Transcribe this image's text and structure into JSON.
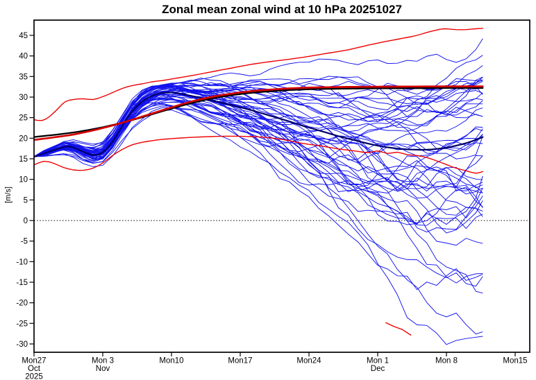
{
  "title": "Zonal mean zonal wind at 10 hPa 20251027",
  "chart_data": {
    "type": "line",
    "title": "Zonal mean zonal wind at 10 hPa 20251027",
    "ylabel": "[m/s]",
    "x_unit": "days since 2025-10-27",
    "xlim_days": [
      0,
      50.5
    ],
    "ylim": [
      -32,
      48.7
    ],
    "grid": false,
    "zero_line": true,
    "y_ticks": [
      -30,
      -25,
      -20,
      -15,
      -10,
      -5,
      0,
      5,
      10,
      15,
      20,
      25,
      30,
      35,
      40,
      45
    ],
    "x_ticks": [
      {
        "day": 0,
        "label": "Mon27",
        "month": "Oct",
        "year": "2025"
      },
      {
        "day": 7,
        "label": "Mon 3",
        "month": "Nov"
      },
      {
        "day": 14,
        "label": "Mon10"
      },
      {
        "day": 21,
        "label": "Mon17"
      },
      {
        "day": 28,
        "label": "Mon24"
      },
      {
        "day": 35,
        "label": "Mon 1",
        "month": "Dec"
      },
      {
        "day": 42,
        "label": "Mon 8"
      },
      {
        "day": 49,
        "label": "Mon15"
      }
    ],
    "series": [
      {
        "name": "climatological-mean-black",
        "color": "#000000",
        "width": 2.3,
        "points": [
          [
            0,
            20.3
          ],
          [
            2,
            20.8
          ],
          [
            4,
            21.4
          ],
          [
            6,
            22.2
          ],
          [
            8,
            23.2
          ],
          [
            10,
            24.4
          ],
          [
            12,
            25.8
          ],
          [
            14,
            27.2
          ],
          [
            16,
            28.5
          ],
          [
            18,
            29.6
          ],
          [
            20,
            30.4
          ],
          [
            22,
            31.0
          ],
          [
            24,
            31.4
          ],
          [
            26,
            31.7
          ],
          [
            28,
            31.9
          ],
          [
            30,
            32.0
          ],
          [
            34,
            32.1
          ],
          [
            38,
            32.15
          ],
          [
            42,
            32.2
          ],
          [
            45.7,
            32.2
          ]
        ]
      },
      {
        "name": "climatological-mean-red",
        "color": "#d40000",
        "width": 2.7,
        "points": [
          [
            0,
            19.6
          ],
          [
            2,
            20.2
          ],
          [
            4,
            20.9
          ],
          [
            6,
            21.9
          ],
          [
            8,
            23.1
          ],
          [
            10,
            24.5
          ],
          [
            12,
            26.0
          ],
          [
            14,
            27.5
          ],
          [
            16,
            28.9
          ],
          [
            18,
            30.0
          ],
          [
            20,
            30.8
          ],
          [
            22,
            31.4
          ],
          [
            24,
            31.8
          ],
          [
            26,
            32.1
          ],
          [
            28,
            32.3
          ],
          [
            30,
            32.4
          ],
          [
            34,
            32.5
          ],
          [
            38,
            32.55
          ],
          [
            42,
            32.6
          ],
          [
            45.7,
            32.6
          ]
        ]
      },
      {
        "name": "climatology-upper-percentile",
        "color": "#ee0000",
        "width": 1.4,
        "points": [
          [
            0,
            24.5
          ],
          [
            0.8,
            24.3
          ],
          [
            1.6,
            25.3
          ],
          [
            2.6,
            27.6
          ],
          [
            3.2,
            28.9
          ],
          [
            4,
            29.4
          ],
          [
            5,
            29.6
          ],
          [
            6,
            29.4
          ],
          [
            7,
            30.1
          ],
          [
            8,
            31.1
          ],
          [
            9,
            32.1
          ],
          [
            10,
            32.8
          ],
          [
            11,
            33.2
          ],
          [
            12,
            33.7
          ],
          [
            13,
            34.0
          ],
          [
            14,
            34.4
          ],
          [
            16,
            35.2
          ],
          [
            18,
            36.1
          ],
          [
            20,
            37.0
          ],
          [
            22,
            37.9
          ],
          [
            24,
            38.6
          ],
          [
            26,
            39.2
          ],
          [
            28,
            39.9
          ],
          [
            30,
            40.7
          ],
          [
            32,
            41.5
          ],
          [
            34,
            42.6
          ],
          [
            36,
            43.6
          ],
          [
            38,
            44.5
          ],
          [
            39,
            45.0
          ],
          [
            40,
            45.7
          ],
          [
            41,
            46.3
          ],
          [
            41.8,
            46.6
          ],
          [
            43,
            46.4
          ],
          [
            44,
            46.4
          ],
          [
            45,
            46.6
          ],
          [
            45.7,
            46.7
          ]
        ]
      },
      {
        "name": "climatology-lower-percentile",
        "color": "#ee0000",
        "width": 1.4,
        "points": [
          [
            0,
            13.5
          ],
          [
            1,
            14.4
          ],
          [
            2,
            13.9
          ],
          [
            3,
            12.9
          ],
          [
            4,
            12.3
          ],
          [
            5,
            12.2
          ],
          [
            6,
            12.7
          ],
          [
            7,
            14.0
          ],
          [
            8,
            15.8
          ],
          [
            9,
            17.3
          ],
          [
            10,
            18.4
          ],
          [
            11,
            19.0
          ],
          [
            12,
            19.4
          ],
          [
            13,
            19.7
          ],
          [
            14,
            19.9
          ],
          [
            16,
            20.2
          ],
          [
            18,
            20.4
          ],
          [
            20,
            20.5
          ],
          [
            22,
            20.4
          ],
          [
            23,
            20.3
          ],
          [
            24,
            20.1
          ],
          [
            25,
            19.8
          ],
          [
            26,
            19.4
          ],
          [
            27,
            18.9
          ],
          [
            28,
            18.5
          ],
          [
            29,
            18.2
          ],
          [
            30,
            17.8
          ],
          [
            31,
            17.4
          ],
          [
            32,
            17.1
          ],
          [
            33,
            16.8
          ],
          [
            34,
            16.5
          ],
          [
            35,
            16.9
          ],
          [
            36,
            16.3
          ],
          [
            37,
            16.6
          ],
          [
            38,
            16.0
          ],
          [
            39,
            15.8
          ],
          [
            40,
            15.3
          ],
          [
            41,
            14.5
          ],
          [
            42,
            13.6
          ],
          [
            43,
            12.7
          ],
          [
            44,
            12.1
          ],
          [
            45,
            11.5
          ],
          [
            45.7,
            11.9
          ]
        ]
      },
      {
        "name": "red-low-segment",
        "color": "#ee0000",
        "width": 1.4,
        "points": [
          [
            35.8,
            -24.8
          ],
          [
            36.6,
            -25.7
          ],
          [
            37.5,
            -26.5
          ],
          [
            38.4,
            -27.9
          ]
        ]
      },
      {
        "name": "ensemble-mean",
        "color": "#000068",
        "width": 2.2,
        "points": [
          [
            0,
            15.5
          ],
          [
            1,
            16.3
          ],
          [
            2,
            17.1
          ],
          [
            3,
            17.8
          ],
          [
            3.6,
            18.0
          ],
          [
            4.3,
            17.5
          ],
          [
            5,
            16.7
          ],
          [
            5.7,
            16.1
          ],
          [
            6.3,
            15.9
          ],
          [
            7,
            16.6
          ],
          [
            7.7,
            18.2
          ],
          [
            8.5,
            21.0
          ],
          [
            9.3,
            24.2
          ],
          [
            10,
            26.6
          ],
          [
            11,
            28.9
          ],
          [
            12,
            30.3
          ],
          [
            13,
            31.0
          ],
          [
            14,
            31.1
          ],
          [
            15,
            30.8
          ],
          [
            16,
            30.3
          ],
          [
            17,
            29.8
          ],
          [
            18,
            29.2
          ],
          [
            19,
            28.7
          ],
          [
            20,
            28.1
          ],
          [
            21,
            27.5
          ],
          [
            22,
            26.9
          ],
          [
            23,
            26.2
          ],
          [
            24,
            25.5
          ],
          [
            25,
            24.8
          ],
          [
            26,
            24.1
          ],
          [
            27,
            23.3
          ],
          [
            28,
            22.6
          ],
          [
            29,
            21.9
          ],
          [
            30,
            21.2
          ],
          [
            31,
            20.5
          ],
          [
            32,
            19.9
          ],
          [
            33,
            19.3
          ],
          [
            34,
            18.7
          ],
          [
            35,
            18.2
          ],
          [
            36,
            17.8
          ],
          [
            37,
            17.5
          ],
          [
            38,
            17.3
          ],
          [
            39,
            17.2
          ],
          [
            40,
            17.2
          ],
          [
            41,
            17.4
          ],
          [
            42,
            17.7
          ],
          [
            43,
            18.2
          ],
          [
            44,
            18.8
          ],
          [
            45,
            19.6
          ],
          [
            45.7,
            20.3
          ]
        ]
      }
    ],
    "ensemble": {
      "name": "ensemble-members",
      "color": "#1212ee",
      "width": 0.95,
      "count": 51,
      "seed": 11,
      "end_day": 45.7,
      "backbone": [
        [
          0,
          15.5
        ],
        [
          1,
          16.3
        ],
        [
          2,
          17.1
        ],
        [
          3,
          17.8
        ],
        [
          3.6,
          18.0
        ],
        [
          4.3,
          17.5
        ],
        [
          5,
          16.7
        ],
        [
          5.7,
          16.1
        ],
        [
          6.3,
          15.9
        ],
        [
          7,
          16.6
        ],
        [
          7.7,
          18.2
        ],
        [
          8.5,
          21.0
        ],
        [
          9.3,
          24.2
        ],
        [
          10,
          26.6
        ],
        [
          11,
          28.9
        ],
        [
          12,
          30.3
        ],
        [
          13,
          31.0
        ],
        [
          14,
          31.1
        ],
        [
          15,
          30.8
        ],
        [
          16,
          30.3
        ],
        [
          17,
          29.8
        ],
        [
          18,
          29.2
        ],
        [
          19,
          28.7
        ],
        [
          20,
          28.1
        ],
        [
          21,
          27.5
        ],
        [
          22,
          26.9
        ],
        [
          23,
          26.2
        ],
        [
          24,
          25.5
        ],
        [
          25,
          24.8
        ],
        [
          26,
          24.1
        ],
        [
          27,
          23.3
        ],
        [
          28,
          22.6
        ],
        [
          29,
          21.9
        ],
        [
          30,
          21.2
        ],
        [
          31,
          20.5
        ],
        [
          32,
          19.9
        ],
        [
          33,
          19.3
        ],
        [
          34,
          18.7
        ],
        [
          35,
          18.2
        ],
        [
          36,
          17.8
        ],
        [
          37,
          17.5
        ],
        [
          38,
          17.3
        ],
        [
          39,
          17.2
        ],
        [
          40,
          17.2
        ],
        [
          41,
          17.4
        ],
        [
          42,
          17.7
        ],
        [
          43,
          18.2
        ],
        [
          44,
          18.8
        ],
        [
          45,
          19.6
        ],
        [
          45.7,
          20.3
        ]
      ],
      "spread": [
        [
          0,
          0.18
        ],
        [
          2,
          0.5
        ],
        [
          4,
          0.8
        ],
        [
          5,
          1.0
        ],
        [
          6,
          1.1
        ],
        [
          7,
          1.2
        ],
        [
          8,
          1.3
        ],
        [
          10,
          1.55
        ],
        [
          12,
          1.75
        ],
        [
          13,
          1.8
        ],
        [
          14,
          1.9
        ],
        [
          16,
          2.4
        ],
        [
          18,
          3.0
        ],
        [
          20,
          3.5
        ],
        [
          22,
          4.3
        ],
        [
          24,
          5.2
        ],
        [
          26,
          6.1
        ],
        [
          28,
          7.0
        ],
        [
          30,
          7.8
        ],
        [
          32,
          8.6
        ],
        [
          34,
          9.4
        ],
        [
          36,
          10.2
        ],
        [
          38,
          11.0
        ],
        [
          40,
          11.8
        ],
        [
          42,
          12.5
        ],
        [
          44,
          13.1
        ],
        [
          45.7,
          13.5
        ]
      ],
      "skew_start_day": 18,
      "skew_down_max": 1.75,
      "skew_up_min": 0.85,
      "clamp_low": -30.3
    },
    "colors": {
      "frame": "#000000",
      "zero_line": "#000000",
      "tick_text": "#000000"
    }
  }
}
